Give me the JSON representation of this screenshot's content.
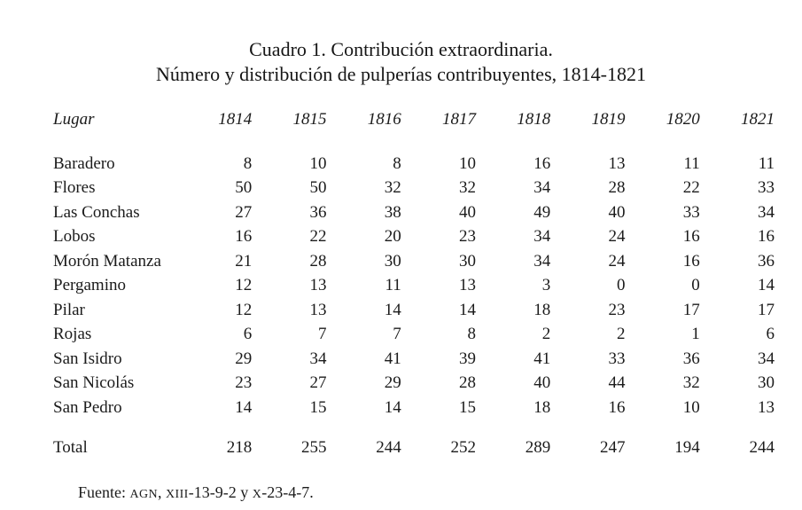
{
  "page": {
    "title_line1": "Cuadro 1. Contribución extraordinaria.",
    "title_line2": "Número y distribución de pulperías contribuyentes, 1814-1821"
  },
  "table": {
    "columns": [
      "Lugar",
      "1814",
      "1815",
      "1816",
      "1817",
      "1818",
      "1819",
      "1820",
      "1821"
    ],
    "rows": [
      {
        "label": "Baradero",
        "values": [
          8,
          10,
          8,
          10,
          16,
          13,
          11,
          11
        ]
      },
      {
        "label": "Flores",
        "values": [
          50,
          50,
          32,
          32,
          34,
          28,
          22,
          33
        ]
      },
      {
        "label": "Las Conchas",
        "values": [
          27,
          36,
          38,
          40,
          49,
          40,
          33,
          34
        ]
      },
      {
        "label": "Lobos",
        "values": [
          16,
          22,
          20,
          23,
          34,
          24,
          16,
          16
        ]
      },
      {
        "label": "Morón Matanza",
        "values": [
          21,
          28,
          30,
          30,
          34,
          24,
          16,
          36
        ]
      },
      {
        "label": "Pergamino",
        "values": [
          12,
          13,
          11,
          13,
          3,
          0,
          0,
          14
        ]
      },
      {
        "label": "Pilar",
        "values": [
          12,
          13,
          14,
          14,
          18,
          23,
          17,
          17
        ]
      },
      {
        "label": "Rojas",
        "values": [
          6,
          7,
          7,
          8,
          2,
          2,
          1,
          6
        ]
      },
      {
        "label": "San Isidro",
        "values": [
          29,
          34,
          41,
          39,
          41,
          33,
          36,
          34
        ]
      },
      {
        "label": "San Nicolás",
        "values": [
          23,
          27,
          29,
          28,
          40,
          44,
          32,
          30
        ]
      },
      {
        "label": "San Pedro",
        "values": [
          14,
          15,
          14,
          15,
          18,
          16,
          10,
          13
        ]
      }
    ],
    "total_row": {
      "label": "Total",
      "values": [
        218,
        255,
        244,
        252,
        289,
        247,
        194,
        244
      ]
    }
  },
  "source": {
    "prefix": "Fuente: ",
    "archive_abbr": "AGN",
    "sep": ", ",
    "ref1_abbr": "XIII",
    "ref1_rest": "-13-9-2 y ",
    "ref2_abbr": "X",
    "ref2_rest": "-23-4-7."
  }
}
